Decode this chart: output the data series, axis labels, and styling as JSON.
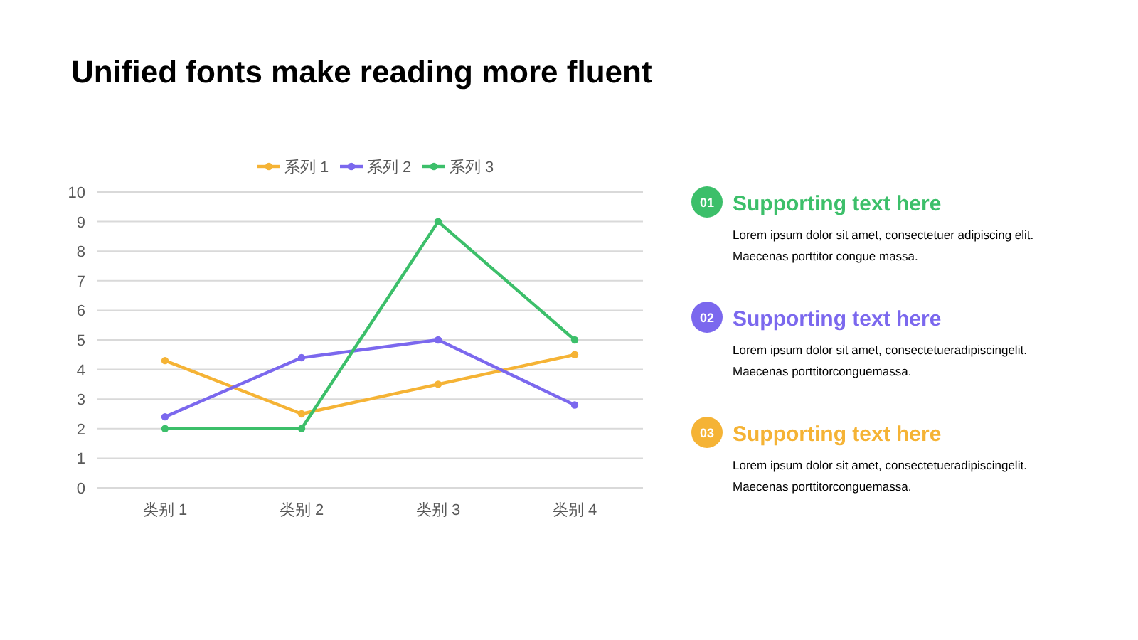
{
  "chart_data": [
    {
      "type": "line",
      "title": "Unified fonts make reading more fluent",
      "categories": [
        "类别 1",
        "类别 2",
        "类别 3",
        "类别 4"
      ],
      "series": [
        {
          "name": "系列 1",
          "color": "#f5b335",
          "values": [
            4.3,
            2.5,
            3.5,
            4.5
          ]
        },
        {
          "name": "系列 2",
          "color": "#7b68ee",
          "values": [
            2.4,
            4.4,
            5,
            2.8
          ]
        },
        {
          "name": "系列 3",
          "color": "#3cbf6a",
          "values": [
            2,
            2,
            9,
            5
          ]
        }
      ],
      "ylim": [
        0,
        10
      ],
      "yticks": [
        0,
        1,
        2,
        3,
        4,
        5,
        6,
        7,
        8,
        9,
        10
      ],
      "grid": "y",
      "legend": "top",
      "marker": "circle",
      "line_style": "solid"
    },
    {
      "type": "other",
      "colors": [
        "#3cbf6a",
        "#7b68ee",
        "#f5b335"
      ],
      "annotations": [
        "01",
        "Supporting text here",
        "Lorem ipsum dolor sit amet, consectetuer adipiscing elit.",
        "Maecenas porttitor congue massa.",
        "02",
        "Supporting text here",
        "Lorem ipsum dolor sit amet, consectetueradipiscingelit.",
        "Maecenas porttitorconguemassa.",
        "03",
        "Supporting text here",
        "Lorem ipsum dolor sit amet, consectetueradipiscingelit.",
        "Maecenas porttitorconguemassa."
      ]
    }
  ]
}
